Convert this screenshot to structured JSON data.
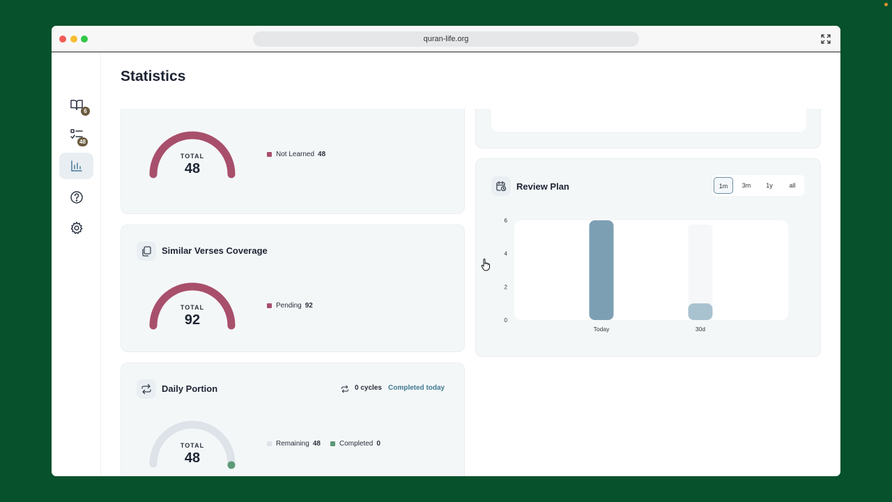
{
  "browser": {
    "url": "quran-life.org"
  },
  "sidebar": {
    "items": [
      {
        "name": "read-book",
        "badge": "6"
      },
      {
        "name": "checklist",
        "badge": "48"
      },
      {
        "name": "statistics"
      },
      {
        "name": "help"
      },
      {
        "name": "settings"
      }
    ]
  },
  "page": {
    "title": "Statistics"
  },
  "learned_card": {
    "gauge_total_label": "TOTAL",
    "gauge_total": "48",
    "legend": [
      {
        "label": "Not Learned",
        "value": "48",
        "color": "#a84f6c"
      }
    ]
  },
  "similar_card": {
    "title": "Similar Verses Coverage",
    "gauge_total_label": "TOTAL",
    "gauge_total": "92",
    "legend": [
      {
        "label": "Pending",
        "value": "92",
        "color": "#a84f6c"
      }
    ]
  },
  "daily_card": {
    "title": "Daily Portion",
    "cycles": "0 cycles",
    "status": "Completed today",
    "gauge_total_label": "TOTAL",
    "gauge_total": "48",
    "legend": [
      {
        "label": "Remaining",
        "value": "48",
        "color": "#dde3e8"
      },
      {
        "label": "Completed",
        "value": "0",
        "color": "#5c9a78"
      }
    ]
  },
  "review_card": {
    "title": "Review Plan",
    "ranges": [
      "1m",
      "3m",
      "1y",
      "all"
    ],
    "active_range": "1m"
  },
  "colors": {
    "accent": "#a84f6c",
    "bar": "#7d9fb4",
    "bar_light": "#a9c2d0",
    "green": "#5c9a78"
  },
  "chart_data": {
    "type": "bar",
    "title": "",
    "categories": [
      "Today",
      "30d"
    ],
    "values": [
      6,
      1
    ],
    "xlabel": "",
    "ylabel": "",
    "yticks": [
      0,
      2,
      4,
      6
    ],
    "ylim": [
      0,
      6
    ]
  }
}
